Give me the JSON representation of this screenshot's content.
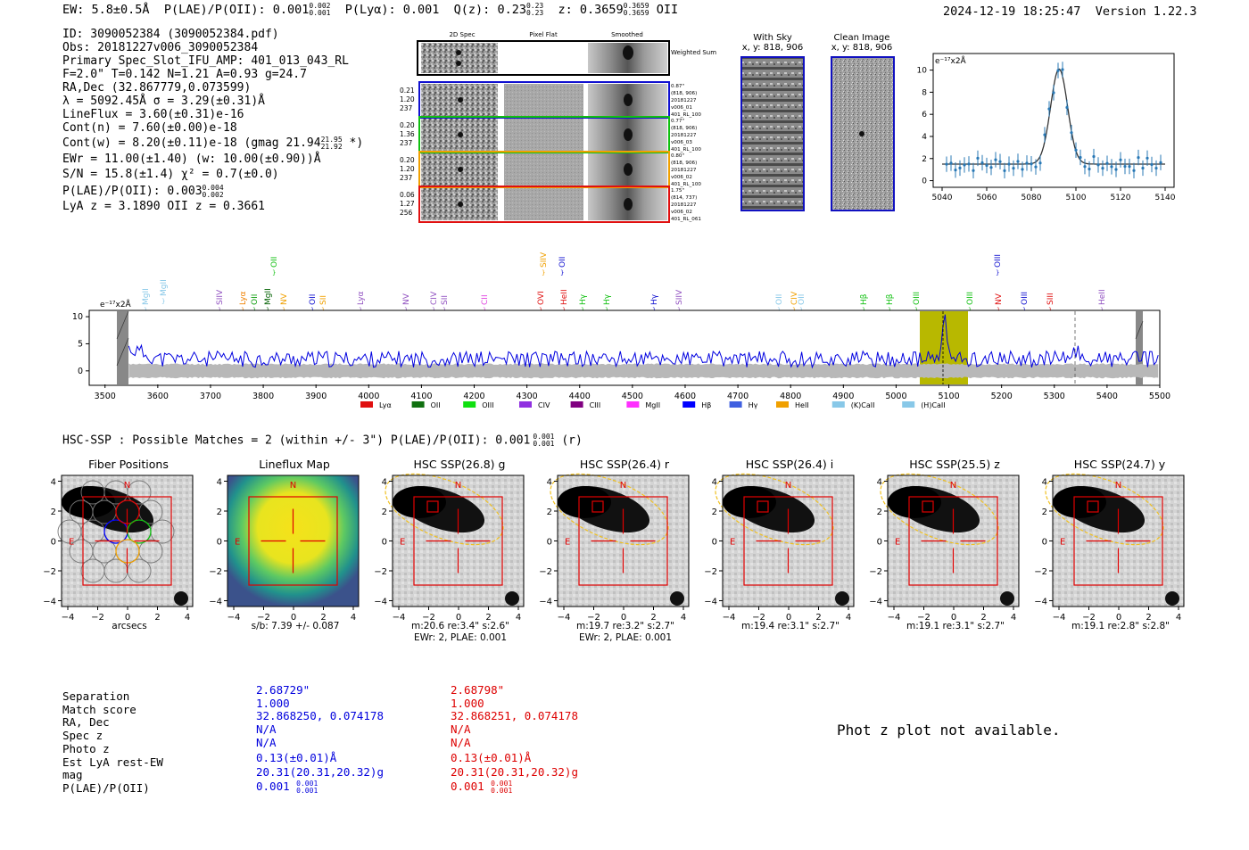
{
  "header": {
    "ew": "EW: 5.8±0.5Å",
    "plae_label": "P(LAE)/P(OII): 0.001",
    "plae_hi": "0.002",
    "plae_lo": "0.001",
    "plya": "P(Lyα): 0.001",
    "qz_label": "Q(z): 0.23",
    "qz_hi": "0.23",
    "qz_lo": "0.23",
    "z_label": "z: 0.3659",
    "z_hi": "0.3659",
    "z_lo": "0.3659",
    "line": "OII",
    "timestamp": "2024-12-19 18:25:47",
    "version": "Version 1.22.3"
  },
  "info": {
    "id": "ID: 3090052384 (3090052384.pdf)",
    "obs": "Obs: 20181227v006_3090052384",
    "primary": "Primary Spec_Slot_IFU_AMP: 401_013_043_RL",
    "fit": "F=2.0\"  T=0.142  N=1.21  A=0.93  g=24.7",
    "radec": "RA,Dec (32.867779,0.073599)",
    "lambda": "λ = 5092.45Å   σ = 3.29(±0.31)Å",
    "lineflux": "LineFlux = 3.60(±0.31)e-16",
    "contn": "Cont(n) = 7.60(±0.00)e-18",
    "contw": "Cont(w) = 8.20(±0.11)e-18 (gmag 21.94",
    "contw_hi": "21.95",
    "contw_lo": "21.92",
    "contw_end": "*)",
    "ewr": "EWr = 11.00(±1.40) (w: 10.00(±0.90))Å",
    "sn": "S/N = 15.8(±1.4)  χ² = 0.7(±0.0)",
    "plae": "P(LAE)/P(OII): 0.003",
    "plae_hi": "0.004",
    "plae_lo": "0.002",
    "lyaz": "LyA z = 3.1890  OII z = 0.3661"
  },
  "cutouts": {
    "col_headers": [
      "2D Spec",
      "Pixel Flat",
      "Smoothed"
    ],
    "weighted": "Weighted Sum",
    "rows": [
      {
        "left": [
          "0.21",
          "1.20",
          "237"
        ],
        "right": [
          "0.87\"",
          "(818, 906)",
          "20181227",
          "v006_01",
          "401_RL_100"
        ],
        "color": "#1010d0"
      },
      {
        "left": [
          "0.20",
          "1.36",
          "237"
        ],
        "right": [
          "0.77\"",
          "(818, 906)",
          "20181227",
          "v006_03",
          "401_RL_100"
        ],
        "color": "#10c010"
      },
      {
        "left": [
          "0.20",
          "1.20",
          "237"
        ],
        "right": [
          "0.80\"",
          "(818, 906)",
          "20181227",
          "v006_02",
          "401_RL_100"
        ],
        "color": "#f0a000"
      },
      {
        "left": [
          "0.06",
          "1.27",
          "256"
        ],
        "right": [
          "1.75\"",
          "(814, 737)",
          "20181227",
          "v006_02",
          "401_RL_061"
        ],
        "color": "#e01010"
      }
    ]
  },
  "sky": {
    "with_title": "With Sky",
    "with_xy": "x, y: 818, 906",
    "clean_title": "Clean Image",
    "clean_xy": "x, y: 818, 906"
  },
  "zoom_spec": {
    "unit": "e⁻¹⁷x2Å",
    "xticks": [
      "5040",
      "5060",
      "5080",
      "5100",
      "5120",
      "5140"
    ],
    "yticks": [
      "0",
      "2",
      "4",
      "6",
      "8",
      "10"
    ]
  },
  "full_spec": {
    "unit": "e⁻¹⁷x2Å",
    "xticks": [
      "3500",
      "3600",
      "3700",
      "3800",
      "3900",
      "4000",
      "4100",
      "4200",
      "4300",
      "4400",
      "4500",
      "4600",
      "4700",
      "4800",
      "4900",
      "5000",
      "5100",
      "5200",
      "5300",
      "5400",
      "5500"
    ],
    "yticks": [
      "10",
      "5",
      "0"
    ],
    "lines": [
      {
        "label": "MgII",
        "x": 1,
        "row": 1,
        "color": "#88c8e8"
      },
      {
        "label": "MgII",
        "x": 2,
        "row": 0,
        "color": "#88c8e8"
      },
      {
        "label": "SIIV",
        "x": 3,
        "row": 1,
        "color": "#9050c0"
      },
      {
        "label": "Lyα",
        "x": 4,
        "row": 1,
        "color": "#f08000"
      },
      {
        "label": "OII",
        "x": 5,
        "row": 2,
        "color": "#10c010"
      },
      {
        "label": "MgII",
        "x": 6,
        "row": 1,
        "color": "#006000"
      },
      {
        "label": "OII",
        "x": 7,
        "row": 1,
        "color": "#10a010"
      },
      {
        "label": "NV",
        "x": 8,
        "row": 1,
        "color": "#f0a000"
      },
      {
        "label": "OII",
        "x": 9,
        "row": 1,
        "color": "#1010d0"
      },
      {
        "label": "SII",
        "x": 10,
        "row": 1,
        "color": "#f0a000"
      },
      {
        "label": "Lyα",
        "x": 11,
        "row": 1,
        "color": "#9050c0"
      },
      {
        "label": "NV",
        "x": 12,
        "row": 1,
        "color": "#9050c0"
      },
      {
        "label": "CIV",
        "x": 13,
        "row": 1,
        "color": "#9050c0"
      },
      {
        "label": "SII",
        "x": 14,
        "row": 1,
        "color": "#9050c0"
      },
      {
        "label": "CII",
        "x": 15,
        "row": 1,
        "color": "#e040e0"
      },
      {
        "label": "OVI",
        "x": 16,
        "row": 1,
        "color": "#e01010"
      },
      {
        "label": "SIIV",
        "x": 17,
        "row": 2,
        "color": "#f0a000"
      },
      {
        "label": "HeII",
        "x": 18,
        "row": 1,
        "color": "#e01010"
      },
      {
        "label": "OII",
        "x": 19,
        "row": 2,
        "color": "#1010d0"
      },
      {
        "label": "Hγ",
        "x": 20,
        "row": 1,
        "color": "#10c010"
      },
      {
        "label": "Hγ",
        "x": 21,
        "row": 1,
        "color": "#10c010"
      },
      {
        "label": "Hγ",
        "x": 22,
        "row": 1,
        "color": "#1010d0"
      },
      {
        "label": "SIIV",
        "x": 23,
        "row": 1,
        "color": "#9050c0"
      },
      {
        "label": "OII",
        "x": 24,
        "row": 1,
        "color": "#88c8e8"
      },
      {
        "label": "CIV",
        "x": 25,
        "row": 1,
        "color": "#f0a000"
      },
      {
        "label": "OII",
        "x": 26,
        "row": 1,
        "color": "#88c8e8"
      },
      {
        "label": "Hβ",
        "x": 27,
        "row": 1,
        "color": "#10c010"
      },
      {
        "label": "Hβ",
        "x": 28,
        "row": 1,
        "color": "#10c010"
      },
      {
        "label": "OIII",
        "x": 29,
        "row": 1,
        "color": "#10c010"
      },
      {
        "label": "OIII",
        "x": 30,
        "row": 1,
        "color": "#10c010"
      },
      {
        "label": "NV",
        "x": 31,
        "row": 1,
        "color": "#e01010"
      },
      {
        "label": "OIII",
        "x": 32,
        "row": 2,
        "color": "#1010d0"
      },
      {
        "label": "OIII",
        "x": 33,
        "row": 1,
        "color": "#1010d0"
      },
      {
        "label": "SIII",
        "x": 34,
        "row": 1,
        "color": "#e01010"
      },
      {
        "label": "HeII",
        "x": 35,
        "row": 1,
        "color": "#9050c0"
      }
    ],
    "legend": [
      {
        "label": "Lyα",
        "color": "#e01010"
      },
      {
        "label": "OII",
        "color": "#107010"
      },
      {
        "label": "OIII",
        "color": "#10e010"
      },
      {
        "label": "CIV",
        "color": "#9030e0"
      },
      {
        "label": "CIII",
        "color": "#800080"
      },
      {
        "label": "MgII",
        "color": "#ff30ff"
      },
      {
        "label": "Hβ",
        "color": "#0000ff"
      },
      {
        "label": "Hγ",
        "color": "#4060e0"
      },
      {
        "label": "HeII",
        "color": "#f0a000"
      },
      {
        "label": "(K)CaII",
        "color": "#88c8e8"
      },
      {
        "label": "(H)CaII",
        "color": "#88c8e8"
      }
    ]
  },
  "hsc": {
    "title": "HSC-SSP : Possible Matches = 2 (within +/- 3\")  P(LAE)/P(OII): 0.001",
    "title_hi": "0.001",
    "title_lo": "0.001",
    "title_end": "(r)",
    "panels": [
      {
        "title": "Fiber Positions",
        "cap1": "arcsecs",
        "cap2": ""
      },
      {
        "title": "Lineflux Map",
        "cap1": "s/b: 7.39 +/- 0.087",
        "cap2": ""
      },
      {
        "title": "HSC SSP(26.8) g",
        "cap1": "m:20.6  re:3.4\"  s:2.6\"",
        "cap2": "EWr: 2, PLAE: 0.001"
      },
      {
        "title": "HSC SSP(26.4) r",
        "cap1": "m:19.7  re:3.2\"  s:2.7\"",
        "cap2": "EWr: 2, PLAE: 0.001"
      },
      {
        "title": "HSC SSP(26.4) i",
        "cap1": "m:19.4  re:3.1\"  s:2.7\"",
        "cap2": ""
      },
      {
        "title": "HSC SSP(25.5) z",
        "cap1": "m:19.1  re:3.1\"  s:2.7\"",
        "cap2": ""
      },
      {
        "title": "HSC SSP(24.7) y",
        "cap1": "m:19.1  re:2.8\"  s:2.8\"",
        "cap2": ""
      }
    ],
    "yticks": [
      "4",
      "2",
      "0",
      "−2",
      "−4"
    ],
    "xticks": [
      "−4",
      "−2",
      "0",
      "2",
      "4"
    ],
    "n_label": "N",
    "e_label": "E"
  },
  "table": {
    "labels": [
      "Separation",
      "Match score",
      "RA, Dec",
      "Spec z",
      "Photo z",
      "Est LyA rest-EW",
      "mag",
      "P(LAE)/P(OII)"
    ],
    "col1": [
      "2.68729\"",
      "1.000",
      "32.868250, 0.074178",
      "N/A",
      "N/A",
      "0.13(±0.01)Å",
      "20.31(20.31,20.32)g",
      "0.001"
    ],
    "col1_hi": "0.001",
    "col1_lo": "0.001",
    "col2": [
      "2.68798\"",
      "1.000",
      "32.868251, 0.074178",
      "N/A",
      "N/A",
      "0.13(±0.01)Å",
      "20.31(20.31,20.32)g",
      "0.001"
    ],
    "col2_hi": "0.001",
    "col2_lo": "0.001",
    "photz": "Phot z plot not available."
  }
}
